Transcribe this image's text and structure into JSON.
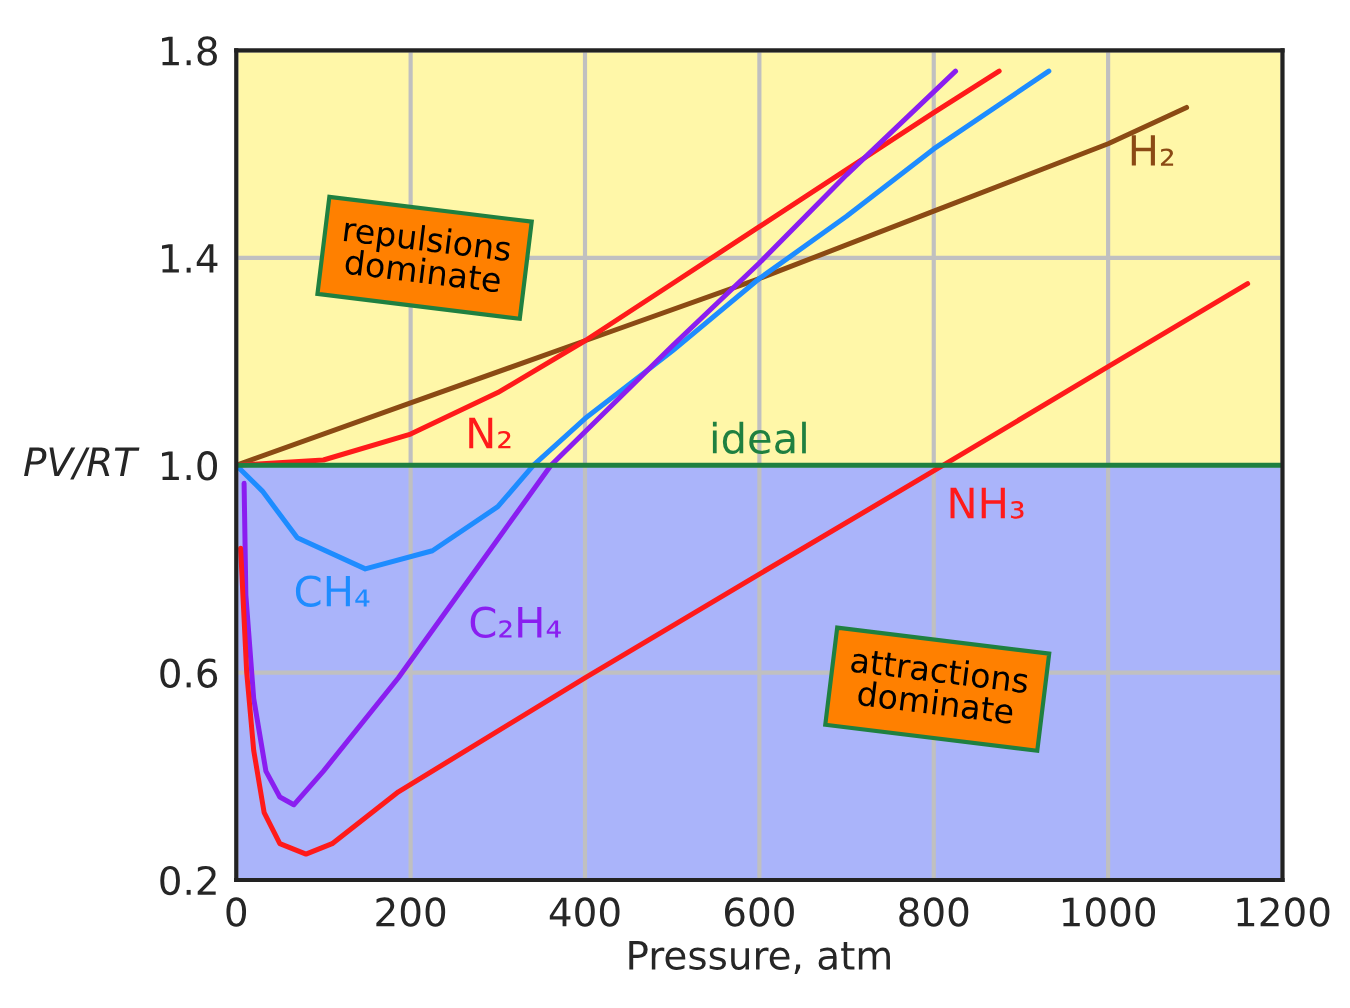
{
  "chart_data": {
    "type": "line",
    "xlabel": "Pressure, atm",
    "ylabel": "PV/RT",
    "xlim": [
      0,
      1200
    ],
    "ylim": [
      0.2,
      1.8
    ],
    "xticks": [
      0,
      200,
      400,
      600,
      800,
      1000,
      1200
    ],
    "yticks": [
      0.2,
      0.6,
      {
        "value": 1.0,
        "label": "1.0"
      },
      1.4,
      1.8
    ],
    "grid": true,
    "bands": [
      {
        "axis": "y",
        "from": 1.0,
        "to": 1.8,
        "label": "repulsions\ndominate",
        "color": "#fff7a8"
      },
      {
        "axis": "y",
        "from": 0.2,
        "to": 1.0,
        "label": "attractions\ndominate",
        "color": "#aab4fa"
      }
    ],
    "series": [
      {
        "name": "H₂",
        "color": "#8b4a14",
        "x": [
          0,
          200,
          400,
          600,
          800,
          1000,
          1090
        ],
        "values": [
          1.0,
          1.12,
          1.24,
          1.36,
          1.49,
          1.62,
          1.69
        ]
      },
      {
        "name": "N₂",
        "color": "#ff1a1a",
        "x": [
          0,
          100,
          200,
          300,
          400,
          500,
          600,
          700,
          800,
          875
        ],
        "values": [
          1.0,
          1.01,
          1.06,
          1.14,
          1.24,
          1.35,
          1.46,
          1.57,
          1.68,
          1.76
        ]
      },
      {
        "name": "CH₄",
        "color": "#1e8cff",
        "x": [
          0,
          30,
          70,
          148,
          225,
          300,
          341,
          400,
          500,
          600,
          700,
          800,
          932
        ],
        "values": [
          1.0,
          0.95,
          0.86,
          0.8,
          0.835,
          0.92,
          1.0,
          1.09,
          1.22,
          1.36,
          1.48,
          1.61,
          1.76
        ]
      },
      {
        "name": "C₂H₄",
        "color": "#8a1ef0",
        "x": [
          9,
          11,
          20,
          34,
          50,
          66,
          100,
          186,
          250,
          361,
          500,
          600,
          700,
          825
        ],
        "values": [
          0.965,
          0.75,
          0.55,
          0.41,
          0.36,
          0.345,
          0.41,
          0.59,
          0.74,
          1.0,
          1.23,
          1.39,
          1.56,
          1.76
        ]
      },
      {
        "name": "NH₃",
        "color": "#ff1a1a",
        "x": [
          5,
          12,
          20,
          32,
          50,
          80,
          110,
          186,
          400,
          600,
          811,
          1000,
          1160
        ],
        "values": [
          0.84,
          0.6,
          0.45,
          0.33,
          0.27,
          0.25,
          0.27,
          0.37,
          0.59,
          0.79,
          1.0,
          1.19,
          1.35
        ]
      },
      {
        "name": "ideal",
        "color": "#1f8040",
        "x": [
          0,
          1200
        ],
        "values": [
          1.0,
          1.0
        ]
      }
    ]
  }
}
